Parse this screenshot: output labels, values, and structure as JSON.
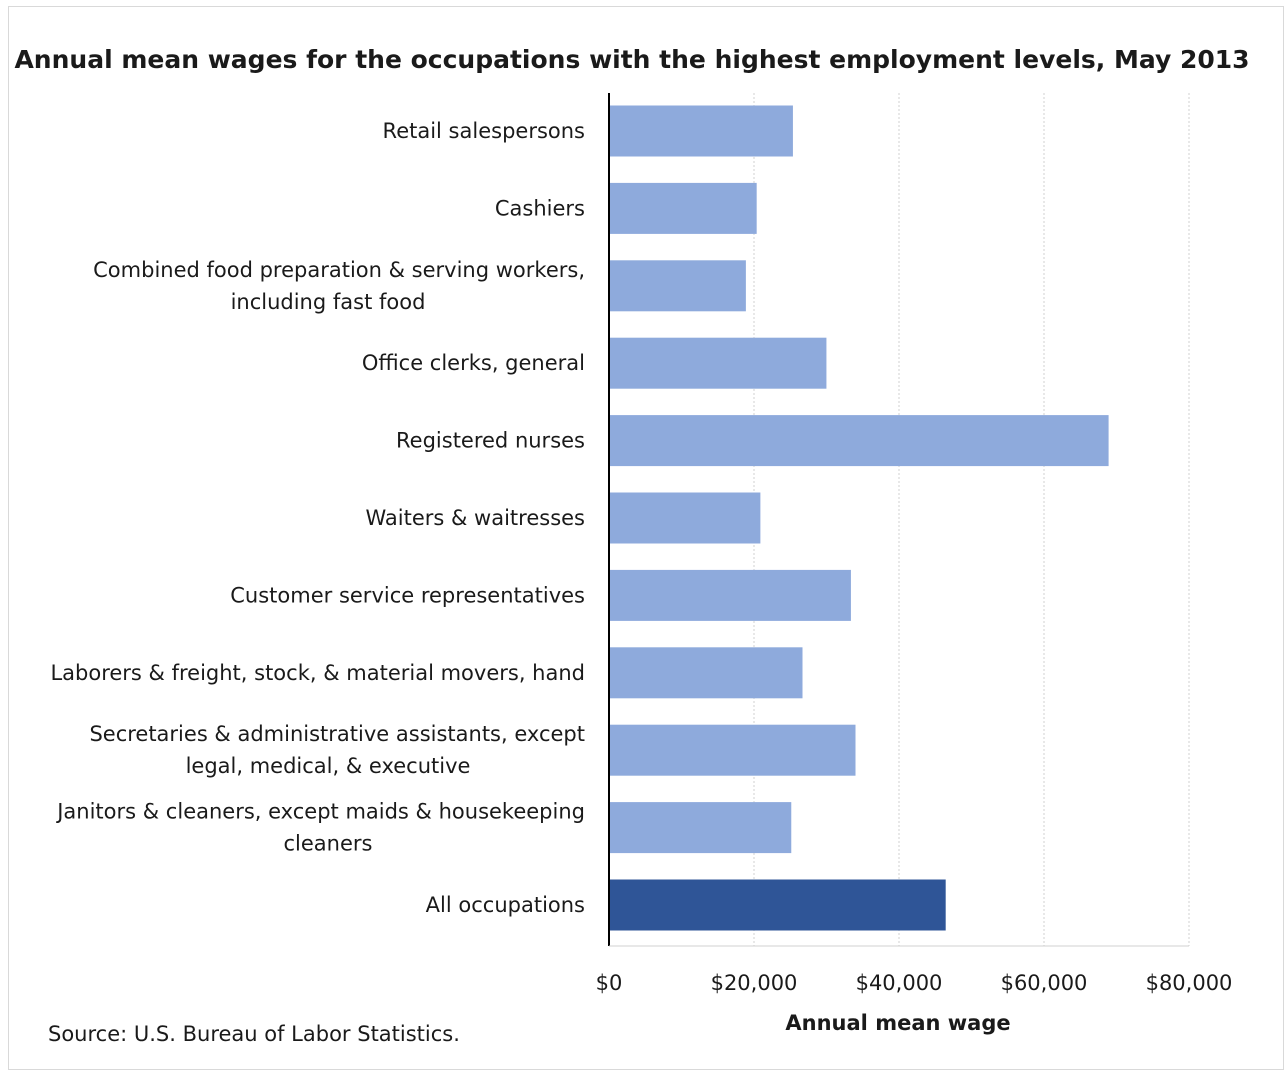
{
  "chart_data": {
    "type": "bar",
    "orientation": "horizontal",
    "title": "Annual mean wages for the occupations with the highest employment levels, May 2013",
    "xlabel": "Annual mean wage",
    "ylabel": "",
    "xlim": [
      0,
      80000
    ],
    "x_ticks": [
      "$0",
      "$20,000",
      "$40,000",
      "$60,000",
      "$80,000"
    ],
    "grid": "vertical",
    "categories": [
      [
        "Retail salespersons"
      ],
      [
        "Cashiers"
      ],
      [
        "Combined food preparation & serving workers,",
        "including fast food"
      ],
      [
        "Office clerks, general"
      ],
      [
        "Registered nurses"
      ],
      [
        "Waiters & waitresses"
      ],
      [
        "Customer service representatives"
      ],
      [
        "Laborers & freight, stock, & material movers, hand"
      ],
      [
        "Secretaries & administrative assistants, except",
        "legal, medical, & executive"
      ],
      [
        "Janitors & cleaners, except maids & housekeeping",
        "cleaners"
      ],
      [
        "All occupations"
      ]
    ],
    "values": [
      25370,
      20370,
      18880,
      29990,
      68910,
      20880,
      33370,
      26690,
      34000,
      25140,
      46440
    ],
    "colors": {
      "bar": "#8eaadc",
      "highlight": "#2f5597",
      "grid": "#d0d0d0",
      "axis": "#000000"
    },
    "highlight_index": 10
  },
  "source": "Source: U.S. Bureau of Labor Statistics."
}
